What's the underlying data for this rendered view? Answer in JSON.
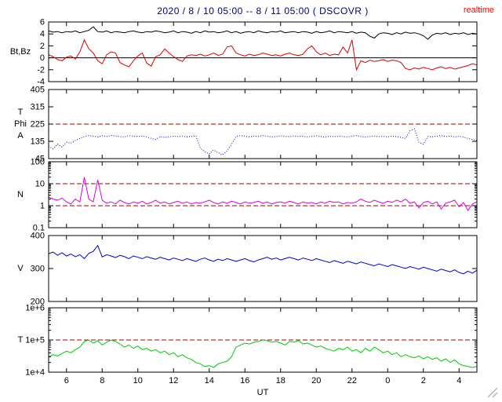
{
  "title": {
    "text": "2020 / 8 / 10  05:00 -- 8 / 11  05:00 ( DSCOVR )",
    "color": "#000080",
    "realtime": "realtime",
    "realtime_color": "#ff0000"
  },
  "xaxis": {
    "label": "UT",
    "min": 5,
    "max": 29,
    "ticks": [
      {
        "pos": 6,
        "label": "6"
      },
      {
        "pos": 8,
        "label": "8"
      },
      {
        "pos": 10,
        "label": "10"
      },
      {
        "pos": 12,
        "label": "12"
      },
      {
        "pos": 14,
        "label": "14"
      },
      {
        "pos": 16,
        "label": "16"
      },
      {
        "pos": 18,
        "label": "18"
      },
      {
        "pos": 20,
        "label": "20"
      },
      {
        "pos": 22,
        "label": "22"
      },
      {
        "pos": 24,
        "label": "0"
      },
      {
        "pos": 26,
        "label": "2"
      },
      {
        "pos": 28,
        "label": "4"
      }
    ]
  },
  "threshold_color": "#aa0000",
  "chart_data": [
    {
      "type": "line",
      "ylabel": [
        "Bt,Bz"
      ],
      "scale": "linear",
      "ymin": -4,
      "ymax": 6,
      "yticks": [
        {
          "v": 6,
          "label": "6"
        },
        {
          "v": 4,
          "label": "4"
        },
        {
          "v": 2,
          "label": "2"
        },
        {
          "v": 0,
          "label": "0"
        },
        {
          "v": -2,
          "label": "-2"
        },
        {
          "v": -4,
          "label": "-4"
        }
      ],
      "hlines": [
        {
          "v": 0,
          "color": "#000000",
          "dash": false
        }
      ],
      "series": [
        {
          "name": "Bt",
          "color": "#000000",
          "style": "line",
          "values": [
            4.5,
            4.3,
            4.4,
            4.2,
            4.4,
            4.3,
            4.5,
            4.2,
            4.4,
            4.6,
            5.2,
            4.4,
            4.3,
            4.5,
            4.2,
            4.4,
            4.3,
            4.2,
            4.4,
            4.5,
            4.3,
            4.2,
            4.4,
            4.3,
            4.5,
            4.4,
            4.2,
            4.3,
            4.5,
            4.2,
            4.4,
            4.3,
            4.1,
            4.4,
            4.2,
            4.5,
            4.3,
            4.4,
            4.2,
            4.3,
            4.5,
            4.2,
            4.4,
            4.1,
            4.3,
            4.4,
            4.2,
            4.5,
            4.3,
            4.2,
            4.4,
            4.3,
            4.5,
            4.2,
            4.3,
            4.4,
            4.2,
            4.4,
            4.3,
            4.1,
            4.4,
            4.2,
            4.3,
            4.5,
            4.2,
            4.4,
            4.3,
            4.2,
            4.4,
            4.1,
            4.3,
            4.2,
            3.6,
            3.3,
            4.0,
            4.2,
            4.1,
            3.9,
            4.2,
            4.0,
            4.3,
            4.1,
            4.2,
            4.0,
            3.7,
            3.1,
            3.8,
            4.1,
            4.0,
            4.2,
            3.9,
            4.1,
            4.0,
            4.2,
            3.9,
            4.1,
            4.0
          ]
        },
        {
          "name": "Bz",
          "color": "#dd0000",
          "style": "line",
          "values": [
            0.5,
            0.2,
            -0.3,
            -0.5,
            0.1,
            0.3,
            -0.2,
            1.0,
            3.0,
            1.5,
            0.8,
            -0.5,
            -1.0,
            0.5,
            1.0,
            0.8,
            -0.8,
            -1.2,
            -1.5,
            -0.5,
            0.3,
            0.8,
            -0.9,
            -1.4,
            0.2,
            0.5,
            1.5,
            0.8,
            0.2,
            -0.3,
            -0.6,
            0.3,
            0.5,
            0.4,
            0.6,
            0.3,
            0.5,
            0.8,
            0.4,
            0.6,
            1.8,
            2.0,
            0.8,
            0.5,
            0.3,
            0.6,
            0.4,
            0.5,
            0.8,
            0.6,
            0.4,
            0.5,
            0.3,
            0.6,
            0.8,
            0.5,
            0.4,
            0.6,
            1.5,
            2.0,
            1.0,
            0.5,
            0.8,
            0.4,
            0.6,
            0.5,
            1.8,
            0.8,
            3.0,
            -2.0,
            -0.5,
            -0.8,
            -0.4,
            -0.6,
            -0.5,
            -0.3,
            -0.6,
            -0.4,
            -0.5,
            -0.8,
            -1.8,
            -2.0,
            -1.7,
            -1.9,
            -1.6,
            -1.8,
            -2.0,
            -1.7,
            -1.5,
            -1.8,
            -1.6,
            -1.9,
            -1.7,
            -1.5,
            -1.3,
            -1.0,
            -1.2
          ]
        }
      ]
    },
    {
      "type": "line",
      "ylabel": [
        "T",
        "Phi",
        "A"
      ],
      "scale": "linear",
      "ymin": 45,
      "ymax": 405,
      "yticks": [
        {
          "v": 405,
          "label": "405"
        },
        {
          "v": 315,
          "label": "315"
        },
        {
          "v": 225,
          "label": "225"
        },
        {
          "v": 135,
          "label": "135"
        },
        {
          "v": 45,
          "label": "45"
        }
      ],
      "hlines": [
        {
          "v": 225,
          "color": "#aa0000",
          "dash": true
        }
      ],
      "series": [
        {
          "name": "Phi",
          "color": "#0000cc",
          "style": "dotted",
          "values": [
            110,
            95,
            120,
            105,
            130,
            125,
            140,
            150,
            160,
            165,
            162,
            158,
            164,
            160,
            166,
            163,
            160,
            158,
            165,
            162,
            160,
            163,
            158,
            150,
            145,
            160,
            155,
            158,
            162,
            160,
            163,
            158,
            161,
            164,
            100,
            80,
            70,
            90,
            75,
            65,
            85,
            120,
            160,
            165,
            162,
            158,
            163,
            160,
            165,
            162,
            158,
            160,
            164,
            161,
            159,
            163,
            160,
            162,
            158,
            161,
            164,
            160,
            157,
            162,
            159,
            163,
            160,
            158,
            162,
            165,
            160,
            157,
            160,
            163,
            159,
            161,
            158,
            162,
            160,
            155,
            150,
            190,
            200,
            130,
            120,
            160,
            158,
            162,
            165,
            160,
            163,
            158,
            161,
            157,
            150,
            145,
            140
          ]
        }
      ]
    },
    {
      "type": "line",
      "ylabel": [
        "N"
      ],
      "scale": "log",
      "ymin": 0.1,
      "ymax": 100,
      "yticks": [
        {
          "v": 100,
          "label": "100"
        },
        {
          "v": 10,
          "label": "10"
        },
        {
          "v": 1,
          "label": "1"
        },
        {
          "v": 0.1,
          "label": "0.1"
        }
      ],
      "hlines": [
        {
          "v": 10,
          "color": "#aa0000",
          "dash": true
        },
        {
          "v": 1,
          "color": "#aa0000",
          "dash": true
        }
      ],
      "series": [
        {
          "name": "N",
          "color": "#dd00dd",
          "style": "line",
          "values": [
            2.5,
            2.0,
            1.8,
            2.2,
            1.5,
            1.2,
            2.0,
            1.5,
            20,
            2.0,
            1.5,
            15,
            1.8,
            1.3,
            1.5,
            1.2,
            1.8,
            1.4,
            1.2,
            1.5,
            1.3,
            1.6,
            1.2,
            1.4,
            1.8,
            1.3,
            1.5,
            1.2,
            1.4,
            1.6,
            1.3,
            1.5,
            1.2,
            1.4,
            1.3,
            1.5,
            1.8,
            1.4,
            1.2,
            1.5,
            1.3,
            1.6,
            1.4,
            1.2,
            1.5,
            1.3,
            1.4,
            1.6,
            1.3,
            1.5,
            1.2,
            1.4,
            1.5,
            1.3,
            1.6,
            1.4,
            1.2,
            1.5,
            1.3,
            1.4,
            1.2,
            1.5,
            1.3,
            1.6,
            1.4,
            1.5,
            1.2,
            1.4,
            1.3,
            1.5,
            2.0,
            1.6,
            1.4,
            1.8,
            1.5,
            1.3,
            1.6,
            1.4,
            1.8,
            1.5,
            2.0,
            1.3,
            1.5,
            0.8,
            1.4,
            1.6,
            1.2,
            1.5,
            0.7,
            1.3,
            1.5,
            1.8,
            0.9,
            1.4,
            0.6,
            1.2,
            1.5
          ]
        }
      ]
    },
    {
      "type": "line",
      "ylabel": [
        "V"
      ],
      "scale": "linear",
      "ymin": 200,
      "ymax": 400,
      "yticks": [
        {
          "v": 400,
          "label": "400"
        },
        {
          "v": 300,
          "label": "300"
        },
        {
          "v": 200,
          "label": "200"
        }
      ],
      "hlines": [],
      "series": [
        {
          "name": "V",
          "color": "#0000cc",
          "style": "line",
          "values": [
            345,
            350,
            340,
            348,
            338,
            344,
            336,
            342,
            330,
            346,
            352,
            370,
            335,
            342,
            338,
            333,
            340,
            336,
            330,
            338,
            334,
            330,
            336,
            332,
            328,
            334,
            330,
            326,
            332,
            328,
            324,
            330,
            326,
            322,
            328,
            332,
            326,
            322,
            328,
            324,
            330,
            326,
            322,
            326,
            330,
            324,
            320,
            326,
            330,
            334,
            328,
            332,
            326,
            330,
            334,
            330,
            326,
            332,
            328,
            324,
            330,
            326,
            322,
            318,
            324,
            320,
            316,
            322,
            318,
            314,
            320,
            316,
            312,
            308,
            314,
            310,
            306,
            312,
            308,
            304,
            300,
            306,
            302,
            298,
            304,
            300,
            296,
            292,
            298,
            294,
            290,
            296,
            288,
            284,
            292,
            286,
            295
          ]
        }
      ]
    },
    {
      "type": "line",
      "ylabel": [
        "T"
      ],
      "scale": "log",
      "ymin": 10000,
      "ymax": 1000000,
      "yticks": [
        {
          "v": 1000000,
          "label": "1e+6"
        },
        {
          "v": 100000,
          "label": "1e+5"
        },
        {
          "v": 10000,
          "label": "1e+4"
        }
      ],
      "hlines": [
        {
          "v": 100000,
          "color": "#aa0000",
          "dash": true
        }
      ],
      "series": [
        {
          "name": "T",
          "color": "#00cc00",
          "style": "line",
          "values": [
            30000,
            35000,
            32000,
            38000,
            45000,
            40000,
            50000,
            60000,
            90000,
            100000,
            80000,
            95000,
            70000,
            85000,
            100000,
            90000,
            75000,
            60000,
            70000,
            55000,
            65000,
            50000,
            55000,
            45000,
            50000,
            40000,
            45000,
            35000,
            40000,
            30000,
            35000,
            28000,
            25000,
            20000,
            18000,
            15000,
            16000,
            14000,
            18000,
            20000,
            22000,
            30000,
            60000,
            70000,
            80000,
            75000,
            85000,
            90000,
            100000,
            95000,
            85000,
            90000,
            80000,
            70000,
            90000,
            85000,
            95000,
            75000,
            80000,
            70000,
            60000,
            65000,
            55000,
            50000,
            45000,
            55000,
            50000,
            60000,
            45000,
            50000,
            40000,
            55000,
            45000,
            60000,
            50000,
            40000,
            45000,
            35000,
            40000,
            30000,
            35000,
            30000,
            28000,
            32000,
            26000,
            30000,
            25000,
            28000,
            22000,
            26000,
            20000,
            24000,
            18000,
            16000,
            15000,
            14000,
            15000
          ]
        }
      ]
    }
  ]
}
